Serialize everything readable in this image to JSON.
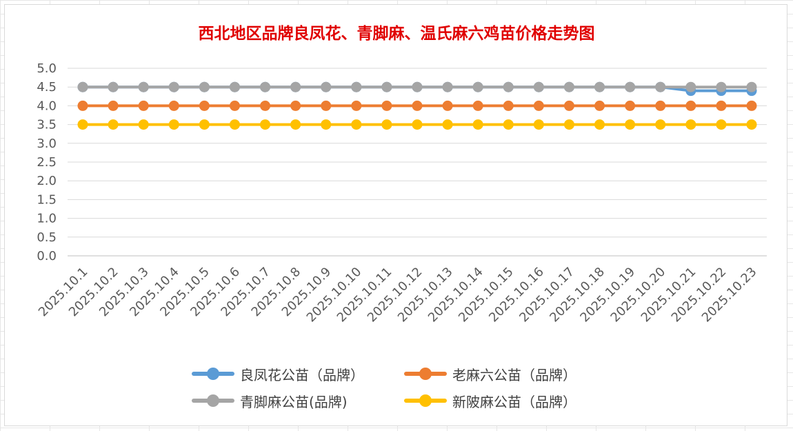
{
  "chart_data": {
    "type": "line",
    "title": "西北地区品牌良凤花、青脚麻、温氏麻六鸡苗价格走势图",
    "xlabel": "",
    "ylabel": "",
    "ylim": [
      0,
      5
    ],
    "yticks": [
      "0.0",
      "0.5",
      "1.0",
      "1.5",
      "2.0",
      "2.5",
      "3.0",
      "3.5",
      "4.0",
      "4.5",
      "5.0"
    ],
    "grid": true,
    "legend_position": "bottom",
    "categories": [
      "2025.10.1",
      "2025.10.2",
      "2025.10.3",
      "2025.10.4",
      "2025.10.5",
      "2025.10.6",
      "2025.10.7",
      "2025.10.8",
      "2025.10.9",
      "2025.10.10",
      "2025.10.11",
      "2025.10.12",
      "2025.10.13",
      "2025.10.14",
      "2025.10.15",
      "2025.10.16",
      "2025.10.17",
      "2025.10.18",
      "2025.10.19",
      "2025.10.20",
      "2025.10.21",
      "2025.10.22",
      "2025.10.23"
    ],
    "series": [
      {
        "name": "良凤花公苗（品牌）",
        "color": "#5b9bd5",
        "values": [
          4.5,
          4.5,
          4.5,
          4.5,
          4.5,
          4.5,
          4.5,
          4.5,
          4.5,
          4.5,
          4.5,
          4.5,
          4.5,
          4.5,
          4.5,
          4.5,
          4.5,
          4.5,
          4.5,
          4.5,
          4.4,
          4.4,
          4.4
        ]
      },
      {
        "name": "老麻六公苗（品牌）",
        "color": "#ed7d31",
        "values": [
          4.0,
          4.0,
          4.0,
          4.0,
          4.0,
          4.0,
          4.0,
          4.0,
          4.0,
          4.0,
          4.0,
          4.0,
          4.0,
          4.0,
          4.0,
          4.0,
          4.0,
          4.0,
          4.0,
          4.0,
          4.0,
          4.0,
          4.0
        ]
      },
      {
        "name": "青脚麻公苗(品牌)",
        "color": "#a5a5a5",
        "values": [
          4.5,
          4.5,
          4.5,
          4.5,
          4.5,
          4.5,
          4.5,
          4.5,
          4.5,
          4.5,
          4.5,
          4.5,
          4.5,
          4.5,
          4.5,
          4.5,
          4.5,
          4.5,
          4.5,
          4.5,
          4.5,
          4.5,
          4.5
        ]
      },
      {
        "name": "新陂麻公苗（品牌）",
        "color": "#ffc000",
        "values": [
          3.5,
          3.5,
          3.5,
          3.5,
          3.5,
          3.5,
          3.5,
          3.5,
          3.5,
          3.5,
          3.5,
          3.5,
          3.5,
          3.5,
          3.5,
          3.5,
          3.5,
          3.5,
          3.5,
          3.5,
          3.5,
          3.5,
          3.5
        ]
      }
    ]
  }
}
